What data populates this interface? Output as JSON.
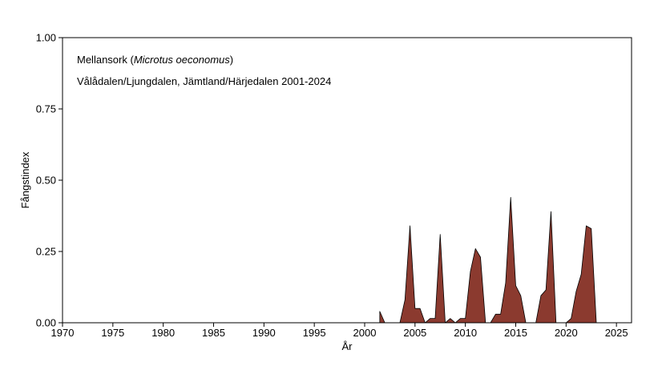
{
  "chart_data": {
    "type": "area",
    "ylabel": "Fångstindex",
    "xlabel": "År",
    "annotation": {
      "species_common": "Mellansork",
      "species_latin": "Microtus oeconomus",
      "location": "Vålådalen/Ljungdalen, Jämtland/Härjedalen 2001-2024"
    },
    "xlim": [
      1970,
      2026.5
    ],
    "ylim": [
      0,
      1
    ],
    "xticks": [
      1970,
      1975,
      1980,
      1985,
      1990,
      1995,
      2000,
      2005,
      2010,
      2015,
      2020,
      2025
    ],
    "yticks": [
      0,
      0.25,
      0.5,
      0.75,
      1
    ],
    "ytick_labels": [
      "0.00",
      "0.25",
      "0.50",
      "0.75",
      "1.00"
    ],
    "fill_color": "#8B3A2F",
    "series": [
      {
        "x": [
          2001.5,
          2002.0,
          2003.0,
          2003.5,
          2004.0,
          2004.5,
          2005.0,
          2005.5,
          2006.0,
          2006.5,
          2007.0,
          2007.5,
          2008.0,
          2008.5,
          2009.0,
          2009.5,
          2010.0,
          2010.5,
          2011.0,
          2011.5,
          2012.0,
          2012.5,
          2013.0,
          2013.5,
          2014.0,
          2014.5,
          2015.0,
          2015.5,
          2016.0,
          2016.5,
          2017.0,
          2017.5,
          2018.0,
          2018.5,
          2019.0,
          2019.5,
          2020.0,
          2020.5,
          2021.0,
          2021.5,
          2022.0,
          2022.5,
          2023.0
        ],
        "y": [
          0.04,
          0.0,
          0.0,
          0.0,
          0.08,
          0.34,
          0.05,
          0.05,
          0.0,
          0.015,
          0.015,
          0.31,
          0.0,
          0.015,
          0.0,
          0.015,
          0.015,
          0.18,
          0.26,
          0.23,
          0.0,
          0.0,
          0.03,
          0.03,
          0.14,
          0.44,
          0.13,
          0.095,
          0.0,
          0.0,
          0.0,
          0.095,
          0.115,
          0.39,
          0.0,
          0.0,
          0.0,
          0.015,
          0.11,
          0.17,
          0.34,
          0.33,
          0.0
        ]
      }
    ]
  }
}
